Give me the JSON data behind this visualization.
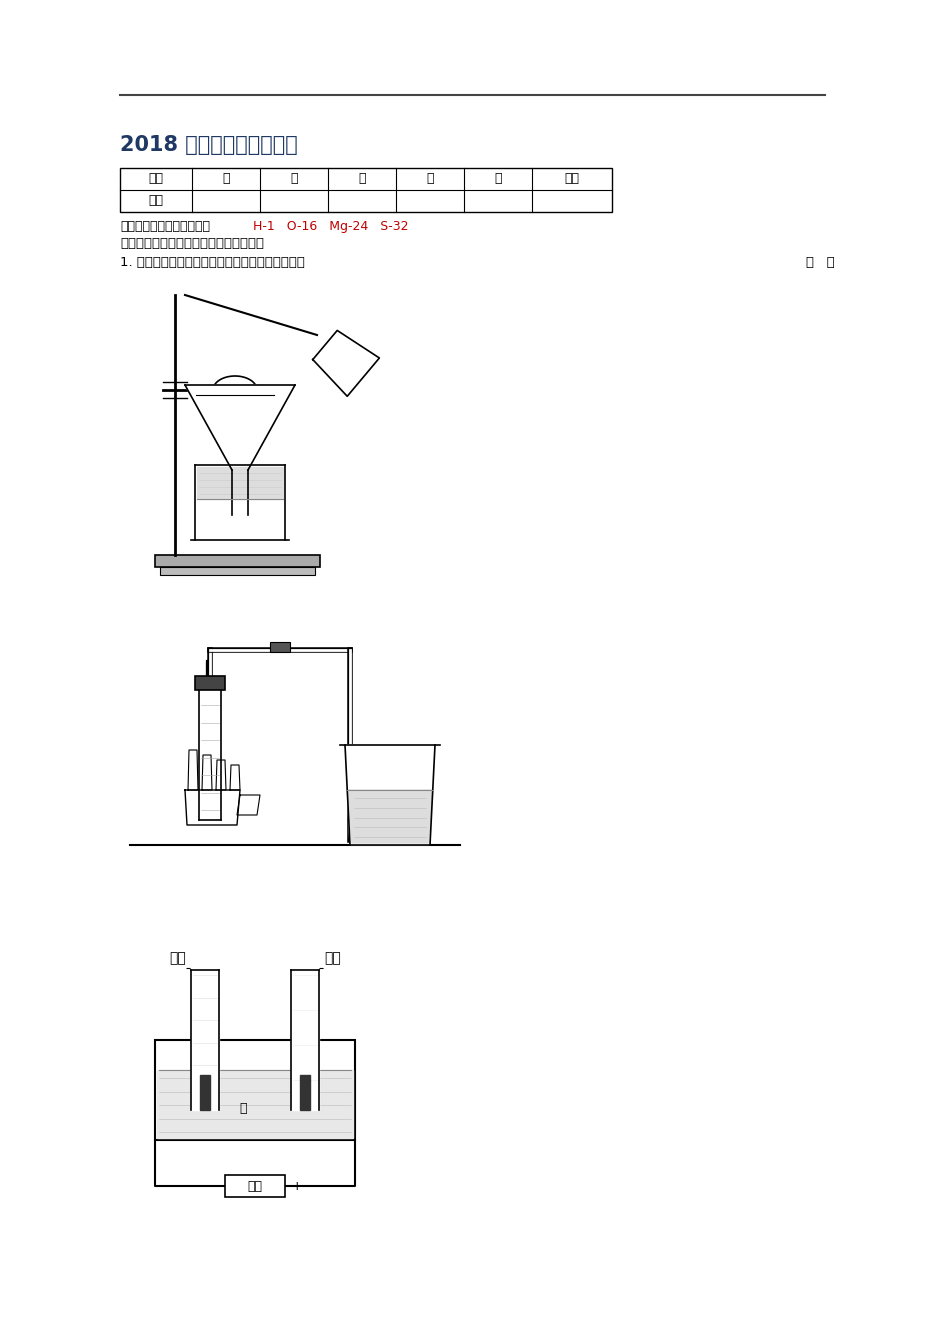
{
  "bg_color": "#ffffff",
  "page_width": 9.45,
  "page_height": 13.37,
  "dpi": 100,
  "title_text": "2018 吉林省中考化学试卷",
  "title_color": "#1F3864",
  "title_fontsize": 15,
  "table_headers": [
    "题号",
    "一",
    "二",
    "三",
    "四",
    "五",
    "总分"
  ],
  "table_row2": [
    "得分",
    "",
    "",
    "",
    "",
    "",
    ""
  ],
  "atomic_mass_label": "可能用到的相对原子质量：",
  "atomic_mass_values": "H-1   O-16   Mg-24   S-32",
  "atomic_mass_color": "#C00000",
  "section_label": "一、单项选择题（每小题１分，共８分）",
  "question_text": "1. 在小明所做的下列实验中，发生了化学变化的是",
  "question_bracket": "（   ）",
  "label_h2": "氢气",
  "label_o2": "氧气",
  "label_water": "水",
  "label_battery": "电池",
  "text_color": "#000000"
}
